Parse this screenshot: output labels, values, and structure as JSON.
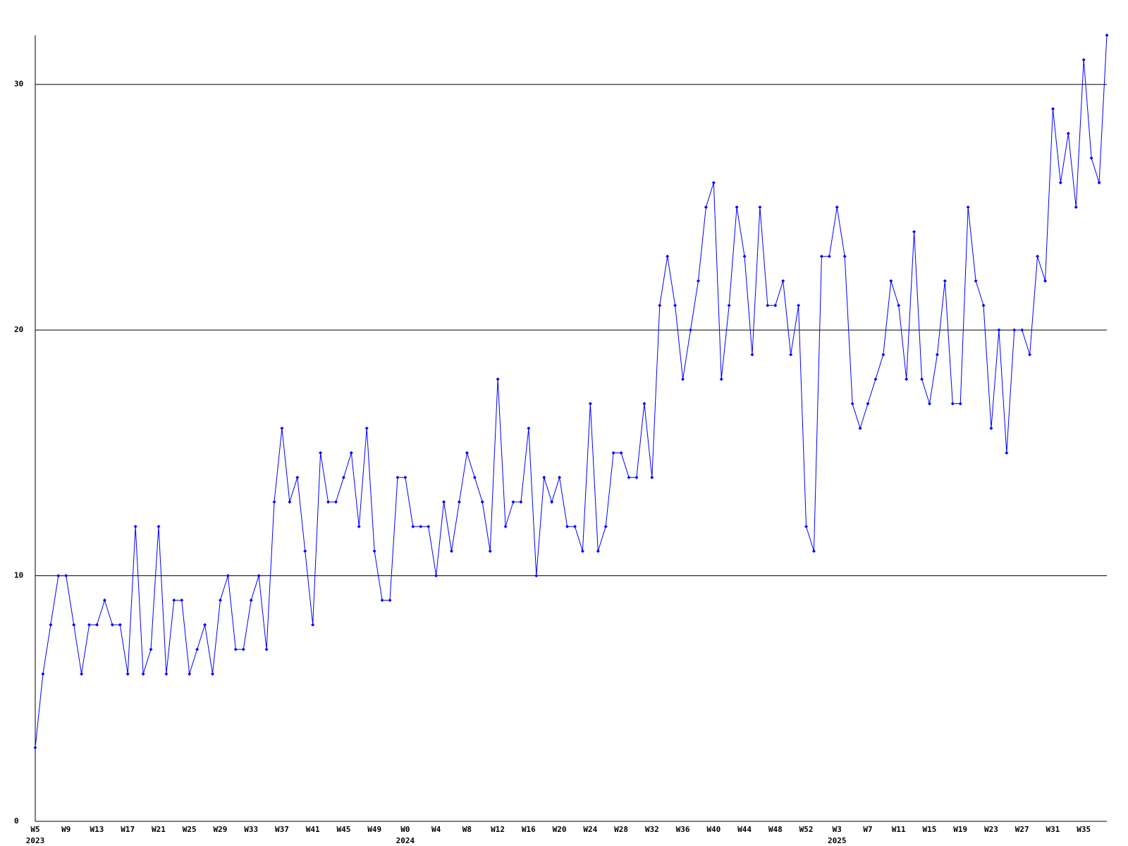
{
  "chart_data": {
    "type": "line",
    "categories": [
      "W5",
      null,
      null,
      null,
      "W9",
      null,
      null,
      null,
      "W13",
      null,
      null,
      null,
      "W17",
      null,
      null,
      null,
      "W21",
      null,
      null,
      null,
      "W25",
      null,
      null,
      null,
      "W29",
      null,
      null,
      null,
      "W33",
      null,
      null,
      null,
      "W37",
      null,
      null,
      null,
      "W41",
      null,
      null,
      null,
      "W45",
      null,
      null,
      null,
      "W49",
      null,
      null,
      null,
      "W0",
      null,
      null,
      null,
      "W4",
      null,
      null,
      null,
      "W8",
      null,
      null,
      null,
      "W12",
      null,
      null,
      null,
      "W16",
      null,
      null,
      null,
      "W20",
      null,
      null,
      null,
      "W24",
      null,
      null,
      null,
      "W28",
      null,
      null,
      null,
      "W32",
      null,
      null,
      null,
      "W36",
      null,
      null,
      null,
      "W40",
      null,
      null,
      null,
      "W44",
      null,
      null,
      null,
      "W48",
      null,
      null,
      null,
      "W52",
      null,
      null,
      null,
      "W3",
      null,
      null,
      null,
      "W7",
      null,
      null,
      null,
      "W11",
      null,
      null,
      null,
      "W15",
      null,
      null,
      null,
      "W19",
      null,
      null,
      null,
      "W23",
      null,
      null,
      null,
      "W27",
      null,
      null,
      null,
      "W31",
      null,
      null,
      null,
      "W35",
      null,
      null,
      null
    ],
    "x_groups": [
      {
        "label": "2023",
        "start": 0
      },
      {
        "label": "2024",
        "start": 48
      },
      {
        "label": "2025",
        "start": 104
      }
    ],
    "series": [
      {
        "color": "#0000ff",
        "values": [
          3,
          6,
          8,
          10,
          10,
          8,
          6,
          8,
          8,
          9,
          8,
          8,
          6,
          12,
          6,
          7,
          12,
          6,
          9,
          9,
          6,
          7,
          8,
          6,
          9,
          10,
          7,
          7,
          9,
          10,
          7,
          13,
          16,
          13,
          14,
          11,
          8,
          15,
          13,
          13,
          14,
          15,
          12,
          16,
          11,
          9,
          9,
          14,
          14,
          12,
          12,
          12,
          10,
          13,
          11,
          13,
          15,
          14,
          13,
          11,
          18,
          12,
          13,
          13,
          16,
          10,
          14,
          13,
          14,
          12,
          12,
          11,
          17,
          11,
          12,
          15,
          15,
          14,
          14,
          17,
          14,
          21,
          23,
          21,
          18,
          20,
          22,
          25,
          26,
          18,
          21,
          25,
          23,
          19,
          25,
          21,
          21,
          22,
          19,
          21,
          12,
          11,
          23,
          23,
          25,
          23,
          17,
          16,
          17,
          18,
          19,
          22,
          21,
          18,
          24,
          18,
          17,
          19,
          22,
          17,
          17,
          25,
          22,
          21,
          16,
          20,
          15,
          20,
          20,
          19,
          23,
          22,
          29,
          26,
          28,
          25,
          31,
          27,
          26,
          32
        ]
      }
    ],
    "ylim": [
      0,
      32
    ],
    "yticks": [
      0,
      10,
      20,
      30
    ],
    "grid": true
  }
}
